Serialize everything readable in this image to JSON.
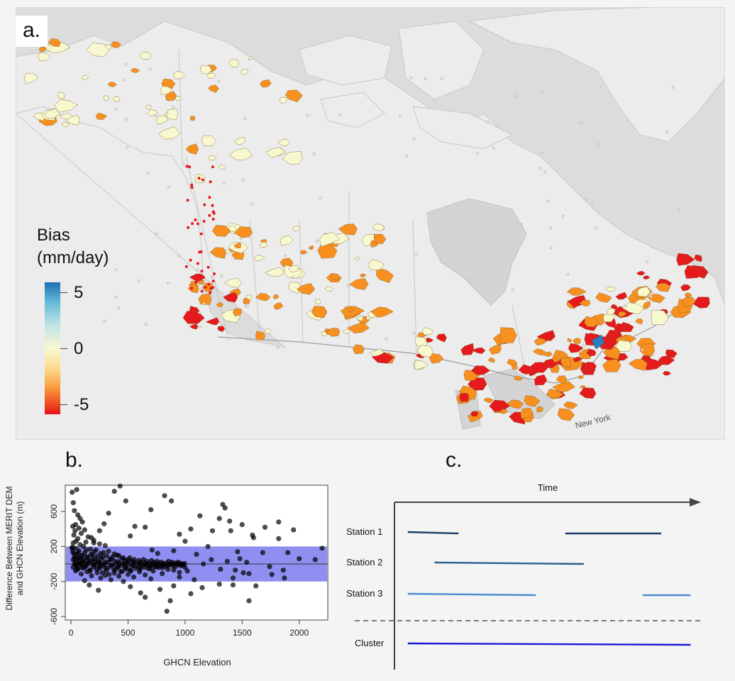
{
  "panels": {
    "a": "a.",
    "b": "b.",
    "c": "c."
  },
  "map": {
    "legend": {
      "title_line1": "Bias",
      "title_line2": "(mm/day)",
      "ticks": [
        "5",
        "0",
        "-5"
      ],
      "range": [
        -6,
        6
      ]
    },
    "place_labels": [
      "New York"
    ],
    "colors": {
      "ocean": "#dcdcdc",
      "land": "#ececec",
      "positive": "#2a7fbf",
      "neutral": "#f8f8cf",
      "moderate": "#f7901e",
      "strong": "#e41a1c"
    }
  },
  "chart_data": [
    {
      "type": "scatter",
      "title": "",
      "xlabel": "GHCN Elevation",
      "ylabel_line1": "Difference Between MERIT DEM",
      "ylabel_line2": "and GHCN Elevation (m)",
      "xlim": [
        -50,
        2250
      ],
      "ylim": [
        -640,
        900
      ],
      "xticks": [
        0,
        500,
        1000,
        1500,
        2000
      ],
      "yticks": [
        -600,
        -200,
        200,
        600
      ],
      "band": [
        -200,
        200
      ],
      "band_color": "#7b7bef",
      "hline": 0,
      "points": [
        [
          10,
          820
        ],
        [
          50,
          850
        ],
        [
          20,
          700
        ],
        [
          30,
          610
        ],
        [
          60,
          560
        ],
        [
          80,
          520
        ],
        [
          100,
          480
        ],
        [
          40,
          450
        ],
        [
          15,
          430
        ],
        [
          70,
          410
        ],
        [
          120,
          390
        ],
        [
          35,
          380
        ],
        [
          90,
          350
        ],
        [
          25,
          330
        ],
        [
          150,
          310
        ],
        [
          180,
          300
        ],
        [
          60,
          290
        ],
        [
          200,
          270
        ],
        [
          45,
          260
        ],
        [
          130,
          250
        ],
        [
          20,
          240
        ],
        [
          250,
          230
        ],
        [
          80,
          220
        ],
        [
          300,
          210
        ],
        [
          110,
          200
        ],
        [
          10,
          190
        ],
        [
          40,
          180
        ],
        [
          170,
          170
        ],
        [
          220,
          160
        ],
        [
          70,
          150
        ],
        [
          330,
          145
        ],
        [
          15,
          140
        ],
        [
          120,
          130
        ],
        [
          260,
          120
        ],
        [
          380,
          115
        ],
        [
          50,
          110
        ],
        [
          190,
          100
        ],
        [
          420,
          95
        ],
        [
          90,
          90
        ],
        [
          30,
          85
        ],
        [
          280,
          80
        ],
        [
          140,
          75
        ],
        [
          460,
          70
        ],
        [
          60,
          65
        ],
        [
          210,
          60
        ],
        [
          350,
          55
        ],
        [
          20,
          50
        ],
        [
          500,
          48
        ],
        [
          100,
          45
        ],
        [
          160,
          40
        ],
        [
          240,
          35
        ],
        [
          70,
          30
        ],
        [
          410,
          28
        ],
        [
          300,
          25
        ],
        [
          550,
          22
        ],
        [
          40,
          20
        ],
        [
          120,
          15
        ],
        [
          190,
          12
        ],
        [
          600,
          10
        ],
        [
          80,
          8
        ],
        [
          260,
          5
        ],
        [
          470,
          2
        ],
        [
          30,
          0
        ],
        [
          150,
          -2
        ],
        [
          650,
          -5
        ],
        [
          220,
          -8
        ],
        [
          360,
          -10
        ],
        [
          90,
          -12
        ],
        [
          540,
          -15
        ],
        [
          700,
          -18
        ],
        [
          50,
          -20
        ],
        [
          280,
          -22
        ],
        [
          420,
          -25
        ],
        [
          130,
          -28
        ],
        [
          750,
          -30
        ],
        [
          200,
          -32
        ],
        [
          610,
          -35
        ],
        [
          20,
          -38
        ],
        [
          330,
          -40
        ],
        [
          480,
          -42
        ],
        [
          800,
          -45
        ],
        [
          110,
          -48
        ],
        [
          250,
          -50
        ],
        [
          680,
          -55
        ],
        [
          60,
          -58
        ],
        [
          390,
          -60
        ],
        [
          850,
          -62
        ],
        [
          170,
          -65
        ],
        [
          520,
          -68
        ],
        [
          900,
          -70
        ],
        [
          310,
          -75
        ],
        [
          40,
          -78
        ],
        [
          720,
          -80
        ],
        [
          450,
          -85
        ],
        [
          140,
          -88
        ],
        [
          600,
          -90
        ],
        [
          950,
          -95
        ],
        [
          230,
          -100
        ],
        [
          380,
          -105
        ],
        [
          800,
          -110
        ],
        [
          90,
          -115
        ],
        [
          500,
          -120
        ],
        [
          650,
          -125
        ],
        [
          300,
          -130
        ],
        [
          180,
          -135
        ],
        [
          420,
          -140
        ],
        [
          550,
          -150
        ],
        [
          260,
          -160
        ],
        [
          700,
          -170
        ],
        [
          350,
          -180
        ],
        [
          120,
          -190
        ],
        [
          460,
          -200
        ],
        [
          10,
          180
        ],
        [
          25,
          120
        ],
        [
          35,
          60
        ],
        [
          45,
          -10
        ],
        [
          55,
          -60
        ],
        [
          65,
          130
        ],
        [
          75,
          70
        ],
        [
          85,
          10
        ],
        [
          95,
          -40
        ],
        [
          105,
          100
        ],
        [
          115,
          40
        ],
        [
          125,
          -20
        ],
        [
          135,
          160
        ],
        [
          145,
          80
        ],
        [
          155,
          20
        ],
        [
          165,
          -80
        ],
        [
          175,
          110
        ],
        [
          185,
          50
        ],
        [
          195,
          -10
        ],
        [
          205,
          140
        ],
        [
          215,
          30
        ],
        [
          225,
          -60
        ],
        [
          235,
          90
        ],
        [
          245,
          15
        ],
        [
          255,
          -30
        ],
        [
          265,
          60
        ],
        [
          275,
          -100
        ],
        [
          285,
          130
        ],
        [
          295,
          0
        ],
        [
          305,
          -50
        ],
        [
          315,
          90
        ],
        [
          325,
          20
        ],
        [
          335,
          -120
        ],
        [
          345,
          50
        ],
        [
          355,
          -20
        ],
        [
          365,
          80
        ],
        [
          375,
          -70
        ],
        [
          385,
          30
        ],
        [
          395,
          -10
        ],
        [
          405,
          100
        ],
        [
          415,
          -40
        ],
        [
          425,
          10
        ],
        [
          435,
          -90
        ],
        [
          445,
          60
        ],
        [
          455,
          0
        ],
        [
          465,
          -30
        ],
        [
          475,
          40
        ],
        [
          485,
          -60
        ],
        [
          495,
          20
        ],
        [
          505,
          -10
        ],
        [
          515,
          70
        ],
        [
          525,
          -80
        ],
        [
          535,
          30
        ],
        [
          545,
          -20
        ],
        [
          555,
          50
        ],
        [
          565,
          -50
        ],
        [
          575,
          10
        ],
        [
          585,
          -30
        ],
        [
          595,
          40
        ],
        [
          605,
          -60
        ],
        [
          615,
          20
        ],
        [
          625,
          -10
        ],
        [
          635,
          50
        ],
        [
          645,
          -40
        ],
        [
          655,
          0
        ],
        [
          665,
          30
        ],
        [
          675,
          -20
        ],
        [
          685,
          10
        ],
        [
          695,
          -50
        ],
        [
          705,
          40
        ],
        [
          715,
          -10
        ],
        [
          725,
          20
        ],
        [
          735,
          -30
        ],
        [
          745,
          0
        ],
        [
          755,
          30
        ],
        [
          765,
          -40
        ],
        [
          775,
          10
        ],
        [
          785,
          -20
        ],
        [
          795,
          20
        ],
        [
          805,
          -10
        ],
        [
          815,
          0
        ],
        [
          825,
          -30
        ],
        [
          835,
          10
        ],
        [
          845,
          -20
        ],
        [
          855,
          30
        ],
        [
          865,
          -10
        ],
        [
          875,
          0
        ],
        [
          885,
          20
        ],
        [
          895,
          -20
        ],
        [
          905,
          10
        ],
        [
          915,
          -30
        ],
        [
          925,
          0
        ],
        [
          935,
          20
        ],
        [
          945,
          -10
        ],
        [
          955,
          10
        ],
        [
          965,
          -20
        ],
        [
          975,
          0
        ],
        [
          985,
          -10
        ],
        [
          995,
          5
        ],
        [
          160,
          -240
        ],
        [
          240,
          -300
        ],
        [
          520,
          -260
        ],
        [
          610,
          -330
        ],
        [
          650,
          -380
        ],
        [
          780,
          -290
        ],
        [
          840,
          -540
        ],
        [
          870,
          -420
        ],
        [
          900,
          -250
        ],
        [
          1050,
          -340
        ],
        [
          1150,
          -270
        ],
        [
          1300,
          -230
        ],
        [
          1420,
          -160
        ],
        [
          1560,
          -420
        ],
        [
          1620,
          -250
        ],
        [
          1560,
          -110
        ],
        [
          1420,
          -240
        ],
        [
          1870,
          -160
        ],
        [
          1900,
          130
        ],
        [
          1950,
          390
        ],
        [
          2200,
          180
        ],
        [
          1820,
          480
        ],
        [
          1700,
          420
        ],
        [
          1600,
          300
        ],
        [
          1500,
          450
        ],
        [
          1390,
          490
        ],
        [
          1350,
          640
        ],
        [
          1300,
          520
        ],
        [
          1200,
          200
        ],
        [
          1100,
          110
        ],
        [
          1020,
          -80
        ],
        [
          950,
          340
        ],
        [
          880,
          720
        ],
        [
          820,
          780
        ],
        [
          700,
          620
        ],
        [
          650,
          420
        ],
        [
          560,
          430
        ],
        [
          520,
          320
        ],
        [
          480,
          720
        ],
        [
          430,
          890
        ],
        [
          380,
          830
        ],
        [
          330,
          580
        ],
        [
          290,
          460
        ],
        [
          250,
          380
        ],
        [
          200,
          240
        ],
        [
          1000,
          260
        ],
        [
          1050,
          400
        ],
        [
          1130,
          550
        ],
        [
          1240,
          380
        ],
        [
          1330,
          680
        ],
        [
          1400,
          380
        ],
        [
          1460,
          140
        ],
        [
          1510,
          -100
        ],
        [
          1590,
          330
        ],
        [
          1680,
          130
        ],
        [
          1740,
          -30
        ],
        [
          1820,
          290
        ],
        [
          1860,
          -70
        ],
        [
          2000,
          60
        ],
        [
          2140,
          50
        ],
        [
          710,
          160
        ],
        [
          760,
          120
        ],
        [
          900,
          150
        ],
        [
          950,
          -150
        ],
        [
          1000,
          -40
        ],
        [
          1080,
          -180
        ],
        [
          1160,
          0
        ],
        [
          1230,
          50
        ],
        [
          1310,
          -60
        ],
        [
          1370,
          30
        ],
        [
          1440,
          -70
        ],
        [
          1480,
          60
        ],
        [
          1540,
          20
        ],
        [
          1760,
          -120
        ]
      ]
    },
    {
      "type": "table",
      "title": "Time",
      "rows": [
        {
          "name": "Station 1",
          "segments": [
            [
              0.05,
              0.24
            ],
            [
              0.64,
              1.0
            ]
          ]
        },
        {
          "name": "Station 2",
          "segments": [
            [
              0.15,
              0.71
            ]
          ]
        },
        {
          "name": "Station 3",
          "segments": [
            [
              0.05,
              0.53
            ],
            [
              0.93,
              1.11
            ]
          ]
        },
        {
          "name": "Cluster",
          "segments": [
            [
              0.05,
              1.11
            ]
          ]
        }
      ],
      "colors": {
        "Station 1": "#1c3f66",
        "Station 2": "#2a5f8f",
        "Station 3": "#4a8ed0",
        "Cluster": "#1818d8"
      }
    }
  ]
}
